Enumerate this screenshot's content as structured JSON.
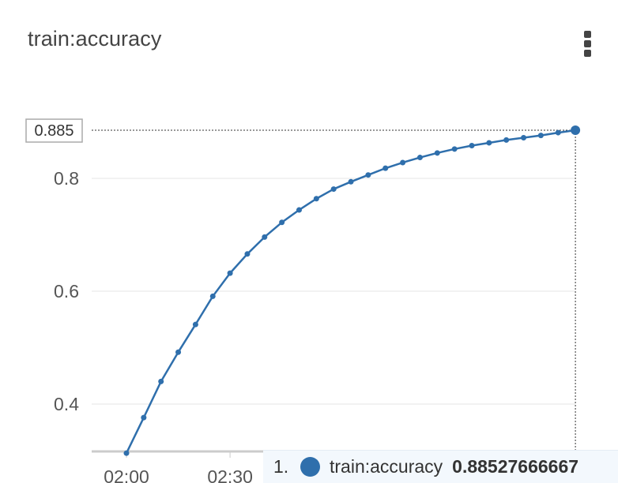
{
  "chart_title": "train:accuracy",
  "menu": {
    "icon": "vertical-ellipsis-icon"
  },
  "colors": {
    "series": "#2f6fac",
    "grid": "#e6e6e6",
    "axis_text": "#555555",
    "crosshair": "#333333",
    "tooltip_bg": "#f3f8fd"
  },
  "chart_data": {
    "type": "line",
    "title": "train:accuracy",
    "xlabel": "",
    "ylabel": "",
    "x_ticks": [
      "02:00",
      "02:30"
    ],
    "y_ticks": [
      0.4,
      0.6,
      0.8
    ],
    "y_tick_labels": [
      "0.4",
      "0.6",
      "0.8"
    ],
    "ylim": [
      0.32,
      0.91
    ],
    "grid": true,
    "legend": "none",
    "series": [
      {
        "name": "train:accuracy",
        "x": [
          "02:00",
          "02:05",
          "02:10",
          "02:15",
          "02:20",
          "02:25",
          "02:30",
          "02:35",
          "02:40",
          "02:45",
          "02:50",
          "02:55",
          "03:00",
          "03:05",
          "03:10",
          "03:15",
          "03:20",
          "03:25",
          "03:30",
          "03:35",
          "03:40",
          "03:45",
          "03:50",
          "03:55",
          "04:00",
          "04:05",
          "04:10"
        ],
        "values": [
          0.313,
          0.376,
          0.44,
          0.492,
          0.541,
          0.591,
          0.632,
          0.666,
          0.696,
          0.722,
          0.744,
          0.764,
          0.781,
          0.794,
          0.806,
          0.818,
          0.828,
          0.837,
          0.845,
          0.852,
          0.858,
          0.863,
          0.868,
          0.872,
          0.876,
          0.881,
          0.88528
        ]
      }
    ],
    "highlight": {
      "axis_label": "0.885",
      "index": "1.",
      "series_name": "train:accuracy",
      "value": "0.88527666667"
    }
  }
}
